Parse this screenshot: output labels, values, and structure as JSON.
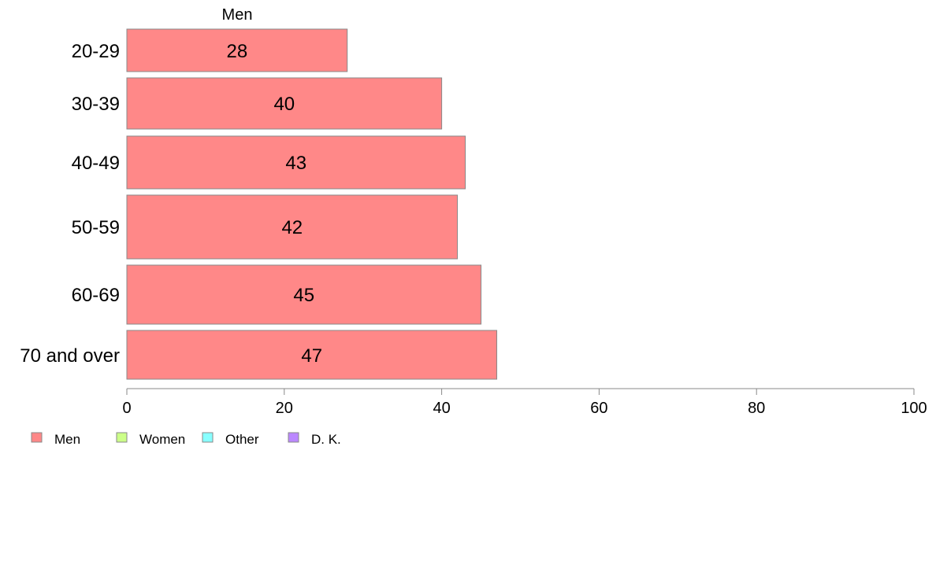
{
  "chart_data": {
    "type": "bar",
    "orientation": "horizontal",
    "categories": [
      "20-29",
      "30-39",
      "40-49",
      "50-59",
      "60-69",
      "70 and over"
    ],
    "series": [
      {
        "name": "Men",
        "values": [
          28,
          40,
          43,
          42,
          45,
          47
        ]
      }
    ],
    "data_labels": [
      "28",
      "40",
      "43",
      "42",
      "45",
      "47"
    ],
    "xlim": [
      0,
      100
    ],
    "x_ticks": [
      0,
      20,
      40,
      60,
      80,
      100
    ],
    "x_tick_labels": [
      "0",
      "20",
      "40",
      "60",
      "80",
      "100"
    ],
    "grid": false,
    "legend": {
      "placement": "bottom-left",
      "entries": [
        {
          "label": "Men",
          "color": "#ff8888"
        },
        {
          "label": "Women",
          "color": "#ccff88"
        },
        {
          "label": "Other",
          "color": "#88ffff"
        },
        {
          "label": "D. K.",
          "color": "#bb88ff"
        }
      ]
    },
    "bar_color": "#ff8888",
    "bar_edge_color": "#888888"
  }
}
